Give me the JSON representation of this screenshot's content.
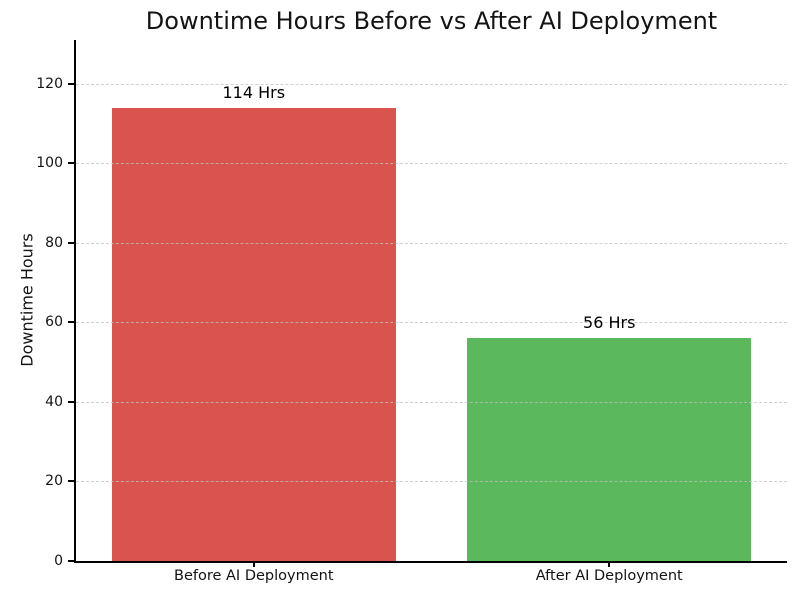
{
  "figure": {
    "background": "#ffffff"
  },
  "chart_data": {
    "type": "bar",
    "title": "Downtime Hours Before vs After AI Deployment",
    "xlabel": "",
    "ylabel": "Downtime Hours",
    "categories": [
      "Before AI Deployment",
      "After AI Deployment"
    ],
    "values": [
      114,
      56
    ],
    "bar_value_labels": [
      "114 Hrs",
      "56 Hrs"
    ],
    "bar_colors": [
      "#d9534f",
      "#5cb85c"
    ],
    "yticks": [
      0,
      20,
      40,
      60,
      80,
      100,
      120
    ],
    "ylim": [
      0,
      131
    ],
    "grid": "horizontal-dashed",
    "gridline_color": "#c0c0c0",
    "legend": "none",
    "text_color": "#141414",
    "spine_color": "#000000"
  }
}
